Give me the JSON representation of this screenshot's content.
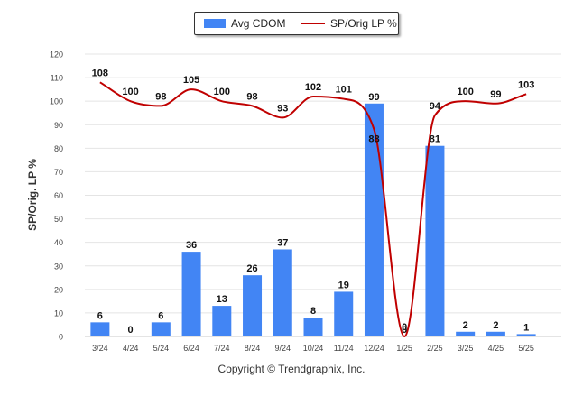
{
  "chart_data": {
    "type": "bar",
    "categories": [
      "3/24",
      "4/24",
      "5/24",
      "6/24",
      "7/24",
      "8/24",
      "9/24",
      "10/24",
      "11/24",
      "12/24",
      "1/25",
      "2/25",
      "3/25",
      "4/25",
      "5/25"
    ],
    "series": [
      {
        "name": "Avg CDOM",
        "type": "bar",
        "color": "#4285f4",
        "values": [
          6,
          0,
          6,
          36,
          13,
          26,
          37,
          8,
          19,
          99,
          0,
          81,
          2,
          2,
          1
        ]
      },
      {
        "name": "SP/Orig LP %",
        "type": "line",
        "color": "#c00000",
        "values": [
          108,
          100,
          98,
          105,
          100,
          98,
          93,
          102,
          101,
          88,
          0,
          94,
          100,
          99,
          103
        ]
      }
    ],
    "ylabel": "SP/Orig. LP %",
    "xlabel": "",
    "ylim": [
      0,
      120
    ],
    "yticks": [
      0,
      10,
      20,
      30,
      40,
      50,
      60,
      70,
      80,
      90,
      100,
      110,
      120
    ],
    "grid": true,
    "legend_position": "top-center"
  },
  "copyright": "Copyright © Trendgraphix, Inc."
}
